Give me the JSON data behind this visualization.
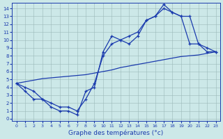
{
  "xlabel": "Graphe des températures (°c)",
  "x_hours": [
    0,
    1,
    2,
    3,
    4,
    5,
    6,
    7,
    8,
    9,
    10,
    11,
    12,
    13,
    14,
    15,
    16,
    17,
    18,
    19,
    20,
    21,
    22,
    23
  ],
  "line_jagged": [
    4.5,
    3.5,
    2.5,
    2.5,
    1.5,
    1.0,
    1.0,
    0.5,
    3.5,
    4.0,
    8.5,
    10.5,
    10.0,
    9.5,
    10.5,
    12.5,
    13.0,
    14.5,
    13.5,
    13.0,
    9.5,
    9.5,
    8.5,
    8.5
  ],
  "line_smooth": [
    4.5,
    4.0,
    3.5,
    2.5,
    2.0,
    1.5,
    1.5,
    1.0,
    2.5,
    4.5,
    8.0,
    9.5,
    10.0,
    10.5,
    11.0,
    12.5,
    13.0,
    14.0,
    13.5,
    13.0,
    13.0,
    9.5,
    9.0,
    8.5
  ],
  "line_trend": [
    4.5,
    4.7,
    4.9,
    5.1,
    5.2,
    5.3,
    5.4,
    5.5,
    5.6,
    5.8,
    6.0,
    6.2,
    6.5,
    6.7,
    6.9,
    7.1,
    7.3,
    7.5,
    7.7,
    7.9,
    8.0,
    8.1,
    8.3,
    8.5
  ],
  "ylim": [
    0,
    14
  ],
  "xlim": [
    0,
    23
  ],
  "yticks": [
    0,
    1,
    2,
    3,
    4,
    5,
    6,
    7,
    8,
    9,
    10,
    11,
    12,
    13,
    14
  ],
  "xticks": [
    0,
    1,
    2,
    3,
    4,
    5,
    6,
    7,
    8,
    9,
    10,
    11,
    12,
    13,
    14,
    15,
    16,
    17,
    18,
    19,
    20,
    21,
    22,
    23
  ],
  "line_color": "#1a3aad",
  "bg_color": "#cce8e8",
  "grid_color": "#9ab8b8",
  "markersize": 3,
  "linewidth": 0.9
}
